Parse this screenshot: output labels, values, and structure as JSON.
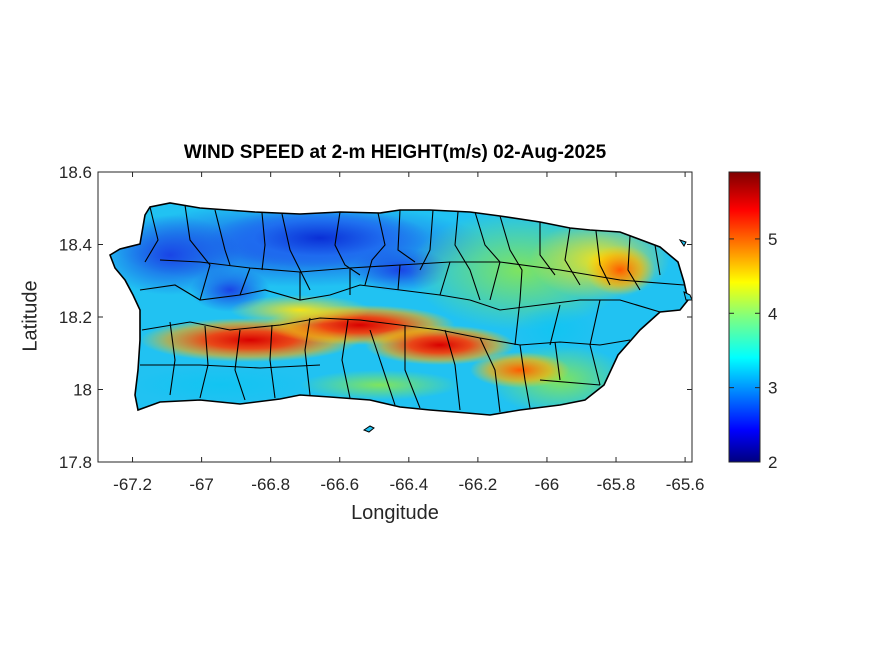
{
  "map": {
    "title": "WIND SPEED at 2-m HEIGHT(m/s) 02-Aug-2025",
    "xlabel": "Longitude",
    "ylabel": "Latitude",
    "xlim": [
      -67.3,
      -65.58
    ],
    "ylim": [
      17.8,
      18.6
    ],
    "xticks": [
      "-67.2",
      "-67",
      "-66.8",
      "-66.6",
      "-66.4",
      "-66.2",
      "-66",
      "-65.8",
      "-65.6"
    ],
    "xtick_values": [
      -67.2,
      -67.0,
      -66.8,
      -66.6,
      -66.4,
      -66.2,
      -66.0,
      -65.8,
      -65.6
    ],
    "yticks": [
      "17.8",
      "18",
      "18.2",
      "18.4",
      "18.6"
    ],
    "ytick_values": [
      17.8,
      18.0,
      18.2,
      18.4,
      18.6
    ],
    "colorbar": {
      "colormap": "jet",
      "range": [
        2,
        5.9
      ],
      "ticks": [
        "2",
        "3",
        "4",
        "5"
      ],
      "tick_values": [
        2,
        3,
        4,
        5
      ]
    },
    "boundary_color": "#000000"
  }
}
